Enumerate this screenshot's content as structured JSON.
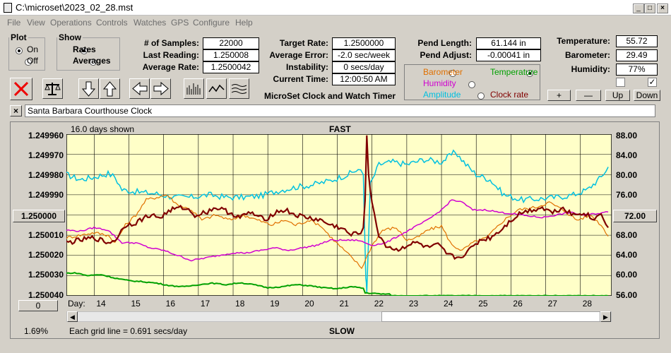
{
  "window": {
    "title": "C:\\microset\\2023_02_28.mst"
  },
  "menu": [
    "File",
    "View",
    "Operations",
    "Controls",
    "Watches",
    "GPS",
    "Configure",
    "Help"
  ],
  "plot": {
    "legend": "Plot",
    "on": "On",
    "off": "Off",
    "selected": "On"
  },
  "show": {
    "legend": "Show",
    "rates": "Rates",
    "averages": "Averages",
    "selected": "Rates"
  },
  "stats": {
    "samples_label": "# of Samples:",
    "samples": "22000",
    "last_label": "Last Reading:",
    "last": "1.250008",
    "avg_label": "Average Rate:",
    "avg": "1.2500042"
  },
  "target": {
    "rate_label": "Target Rate:",
    "rate": "1.2500000",
    "err_label": "Average Error:",
    "err": "-2.0 sec/week",
    "inst_label": "Instability:",
    "inst": "0 secs/day",
    "time_label": "Current Time:",
    "time": "12:00:50 AM"
  },
  "pend": {
    "len_label": "Pend Length:",
    "len": "61.144 in",
    "adj_label": "Pend Adjust:",
    "adj": "-0.00041 in"
  },
  "env": {
    "temp_label": "Temperature:",
    "temp": "55.72",
    "baro_label": "Barometer:",
    "baro": "29.49",
    "hum_label": "Humidity:",
    "hum": "77%"
  },
  "channels": {
    "barometer": "Barometer",
    "temperature": "Temperature",
    "humidity": "Humidity",
    "amplitude": "Amplitude",
    "clock_rate": "Clock rate",
    "selected": "Temperature",
    "colors": {
      "barometer": "#e07000",
      "temperature": "#00a000",
      "humidity": "#d000d0",
      "amplitude": "#00c0e0",
      "clock_rate": "#800000"
    }
  },
  "app_caption": "MicroSet Clock and Watch Timer",
  "adjust_buttons": {
    "plus": "+",
    "minus": "—",
    "up": "Up",
    "down": "Down"
  },
  "clock_name": "Santa Barbara Courthouse Clock",
  "chart_header": {
    "days_shown": "16.0 days shown",
    "fast": "FAST",
    "slow": "SLOW",
    "grid_note": "Each grid line = 0.691 secs/day",
    "percent": "1.69%",
    "left_button": "0",
    "mid_left": "1.250000",
    "mid_right": "72.00"
  },
  "chart_data": {
    "type": "line",
    "xlabel": "Day:",
    "x_ticks": [
      "14",
      "15",
      "16",
      "17",
      "18",
      "19",
      "20",
      "21",
      "22",
      "23",
      "24",
      "25",
      "26",
      "27",
      "28"
    ],
    "y_left_ticks": [
      "1.249960",
      "1.249970",
      "1.249980",
      "1.249990",
      "1.250000",
      "1.250010",
      "1.250020",
      "1.250030",
      "1.250040"
    ],
    "y_right_ticks": [
      "88.00",
      "84.00",
      "80.00",
      "76.00",
      "72.00",
      "68.00",
      "64.00",
      "60.00",
      "56.00"
    ],
    "y_left_range": [
      1.24996,
      1.25004
    ],
    "y_right_range": [
      56,
      88
    ],
    "x_range": [
      13.2,
      28.9
    ],
    "series": [
      {
        "color": "#00c0e0",
        "axis": "right",
        "points": [
          [
            13.2,
            80
          ],
          [
            13.6,
            79
          ],
          [
            14.0,
            79.5
          ],
          [
            14.4,
            80.2
          ],
          [
            14.6,
            79.5
          ],
          [
            14.8,
            77
          ],
          [
            15.3,
            76.5
          ],
          [
            15.8,
            76.2
          ],
          [
            16.3,
            75.5
          ],
          [
            16.8,
            75.5
          ],
          [
            17.3,
            76
          ],
          [
            17.8,
            75.5
          ],
          [
            18.3,
            75.5
          ],
          [
            18.8,
            75.8
          ],
          [
            19.3,
            76.8
          ],
          [
            19.8,
            77.5
          ],
          [
            20.3,
            78
          ],
          [
            20.8,
            78.8
          ],
          [
            21.3,
            80
          ],
          [
            21.6,
            81
          ],
          [
            21.75,
            80
          ],
          [
            21.82,
            60
          ],
          [
            21.85,
            56.5
          ],
          [
            21.95,
            78
          ],
          [
            22.2,
            82
          ],
          [
            22.6,
            82.5
          ],
          [
            23.0,
            82
          ],
          [
            23.5,
            83
          ],
          [
            24.0,
            82.5
          ],
          [
            24.4,
            84.5
          ],
          [
            24.7,
            82
          ],
          [
            25.0,
            80
          ],
          [
            25.4,
            79
          ],
          [
            25.8,
            76
          ],
          [
            26.3,
            75
          ],
          [
            26.8,
            75.2
          ],
          [
            27.3,
            75.5
          ],
          [
            27.8,
            76
          ],
          [
            28.2,
            77
          ],
          [
            28.6,
            79.5
          ],
          [
            28.8,
            81.5
          ]
        ]
      },
      {
        "color": "#e07000",
        "axis": "right",
        "points": [
          [
            13.2,
            67.5
          ],
          [
            13.6,
            68
          ],
          [
            14.0,
            68.5
          ],
          [
            14.4,
            68
          ],
          [
            14.6,
            66.5
          ],
          [
            14.9,
            70
          ],
          [
            15.2,
            72
          ],
          [
            15.5,
            75
          ],
          [
            15.8,
            75.5
          ],
          [
            16.1,
            76
          ],
          [
            16.4,
            74
          ],
          [
            16.8,
            73
          ],
          [
            17.1,
            71
          ],
          [
            17.5,
            72
          ],
          [
            17.9,
            71
          ],
          [
            18.3,
            72
          ],
          [
            18.7,
            71
          ],
          [
            19.1,
            70
          ],
          [
            19.5,
            71
          ],
          [
            19.8,
            70
          ],
          [
            20.2,
            71
          ],
          [
            20.5,
            70
          ],
          [
            20.9,
            67
          ],
          [
            21.2,
            65
          ],
          [
            21.5,
            63
          ],
          [
            21.7,
            61.5
          ],
          [
            22.0,
            66
          ],
          [
            22.3,
            69
          ],
          [
            22.7,
            69.5
          ],
          [
            23.0,
            67
          ],
          [
            23.3,
            67.5
          ],
          [
            23.6,
            69
          ],
          [
            24.0,
            69.8
          ],
          [
            24.3,
            66
          ],
          [
            24.6,
            65
          ],
          [
            24.9,
            66.5
          ],
          [
            25.3,
            67.5
          ],
          [
            25.8,
            71
          ],
          [
            26.2,
            73
          ],
          [
            26.7,
            73.5
          ],
          [
            27.1,
            74.5
          ],
          [
            27.5,
            73
          ],
          [
            27.9,
            71
          ],
          [
            28.3,
            72
          ],
          [
            28.6,
            70
          ],
          [
            28.8,
            67.8
          ]
        ]
      },
      {
        "color": "#d000d0",
        "axis": "right",
        "points": [
          [
            13.2,
            69
          ],
          [
            13.6,
            68.8
          ],
          [
            14.0,
            69.5
          ],
          [
            14.4,
            69
          ],
          [
            14.8,
            66.5
          ],
          [
            15.2,
            66.5
          ],
          [
            15.6,
            65.5
          ],
          [
            16.0,
            65
          ],
          [
            16.4,
            64
          ],
          [
            16.8,
            63
          ],
          [
            17.2,
            63.5
          ],
          [
            17.6,
            64
          ],
          [
            18.0,
            64.5
          ],
          [
            18.4,
            64.5
          ],
          [
            18.8,
            65
          ],
          [
            19.2,
            65.5
          ],
          [
            19.6,
            65
          ],
          [
            20.0,
            65.5
          ],
          [
            20.4,
            66
          ],
          [
            20.8,
            67
          ],
          [
            21.2,
            67
          ],
          [
            21.6,
            67
          ],
          [
            22.0,
            66
          ],
          [
            22.4,
            66.5
          ],
          [
            22.8,
            68
          ],
          [
            23.2,
            69.5
          ],
          [
            23.6,
            71
          ],
          [
            24.0,
            73
          ],
          [
            24.3,
            75
          ],
          [
            24.6,
            74.5
          ],
          [
            24.9,
            73
          ],
          [
            25.3,
            73
          ],
          [
            25.7,
            72.5
          ],
          [
            26.1,
            72.2
          ],
          [
            26.5,
            71.8
          ],
          [
            26.9,
            71.5
          ],
          [
            27.3,
            72
          ],
          [
            27.7,
            72.5
          ],
          [
            28.1,
            72
          ],
          [
            28.5,
            72.3
          ],
          [
            28.8,
            72.6
          ]
        ]
      },
      {
        "color": "#00a000",
        "axis": "right",
        "points": [
          [
            13.2,
            60.5
          ],
          [
            13.5,
            60.5
          ],
          [
            13.8,
            60
          ],
          [
            14.2,
            60.2
          ],
          [
            14.6,
            59.5
          ],
          [
            15.0,
            59
          ],
          [
            15.4,
            58.8
          ],
          [
            15.8,
            58.5
          ],
          [
            16.2,
            58
          ],
          [
            16.6,
            57.8
          ],
          [
            17.0,
            58.2
          ],
          [
            17.4,
            58.5
          ],
          [
            17.8,
            58.2
          ],
          [
            18.2,
            58.6
          ],
          [
            18.6,
            58.2
          ],
          [
            19.0,
            57.6
          ],
          [
            19.4,
            57.8
          ],
          [
            19.8,
            58.2
          ],
          [
            20.2,
            58
          ],
          [
            20.6,
            57.6
          ],
          [
            21.0,
            57.4
          ],
          [
            21.4,
            57.8
          ],
          [
            21.75,
            57.5
          ],
          [
            21.8,
            56.6
          ],
          [
            22.2,
            56.4
          ],
          [
            22.5,
            56.3
          ],
          [
            22.6,
            56
          ],
          [
            28.8,
            56
          ]
        ]
      },
      {
        "color": "#800000",
        "axis": "right",
        "points": [
          [
            13.2,
            66.5
          ],
          [
            13.6,
            67
          ],
          [
            14.0,
            67.5
          ],
          [
            14.4,
            66.5
          ],
          [
            14.6,
            67
          ],
          [
            14.9,
            70
          ],
          [
            15.2,
            70.5
          ],
          [
            15.6,
            72
          ],
          [
            15.9,
            71.5
          ],
          [
            16.2,
            73
          ],
          [
            16.6,
            73.5
          ],
          [
            16.9,
            72
          ],
          [
            17.2,
            72.5
          ],
          [
            17.5,
            73.5
          ],
          [
            17.9,
            72.5
          ],
          [
            18.2,
            71.5
          ],
          [
            18.5,
            72.5
          ],
          [
            18.9,
            71
          ],
          [
            19.2,
            72.5
          ],
          [
            19.5,
            73
          ],
          [
            19.8,
            72
          ],
          [
            20.1,
            71.5
          ],
          [
            20.5,
            71
          ],
          [
            20.8,
            70
          ],
          [
            21.1,
            69.5
          ],
          [
            21.4,
            68
          ],
          [
            21.6,
            68.5
          ],
          [
            21.75,
            69
          ],
          [
            21.8,
            75
          ],
          [
            21.85,
            88
          ],
          [
            21.9,
            80
          ],
          [
            22.0,
            74
          ],
          [
            22.2,
            68
          ],
          [
            22.4,
            66
          ],
          [
            22.7,
            65
          ],
          [
            23.0,
            66
          ],
          [
            23.3,
            66.5
          ],
          [
            23.6,
            65.5
          ],
          [
            23.9,
            66
          ],
          [
            24.2,
            64
          ],
          [
            24.5,
            63.5
          ],
          [
            24.8,
            65
          ],
          [
            25.1,
            67
          ],
          [
            25.4,
            67.5
          ],
          [
            25.7,
            69
          ],
          [
            26.0,
            71
          ],
          [
            26.3,
            72.5
          ],
          [
            26.6,
            73
          ],
          [
            26.9,
            73.5
          ],
          [
            27.2,
            72.5
          ],
          [
            27.5,
            73.5
          ],
          [
            27.8,
            72
          ],
          [
            28.1,
            72.5
          ],
          [
            28.4,
            71
          ],
          [
            28.6,
            72.5
          ],
          [
            28.8,
            69.5
          ]
        ]
      }
    ]
  }
}
